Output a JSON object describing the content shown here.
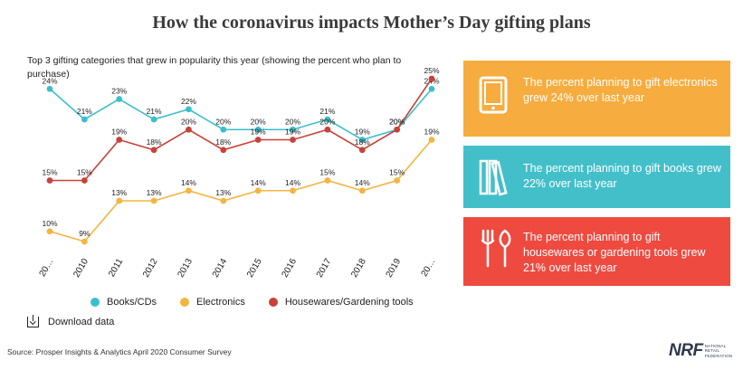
{
  "title": "How the coronavirus impacts Mother’s Day gifting plans",
  "subtitle": "Top 3 gifting categories that grew in popularity this year (showing the percent who plan to purchase)",
  "colors": {
    "books": "#3bbfcc",
    "electronics": "#f3b540",
    "housewares": "#c8413a",
    "card_orange": "#f6ac3e",
    "card_teal": "#43bfca",
    "card_red": "#ee4a40"
  },
  "chart_data": {
    "type": "line",
    "x": [
      "20…",
      "2010",
      "2011",
      "2012",
      "2013",
      "2014",
      "2015",
      "2016",
      "2017",
      "2018",
      "2019",
      "20…"
    ],
    "series": [
      {
        "name": "Books/CDs",
        "color": "#3bbfcc",
        "values": [
          24,
          21,
          23,
          21,
          22,
          20,
          20,
          20,
          21,
          19,
          20,
          24
        ],
        "labels": [
          "24%",
          "21%",
          "23%",
          "21%",
          "22%",
          "20%",
          "20%",
          "20%",
          "21%",
          "19%",
          "20%",
          "24%"
        ]
      },
      {
        "name": "Electronics",
        "color": "#f3b540",
        "values": [
          10,
          9,
          13,
          13,
          14,
          13,
          14,
          14,
          15,
          14,
          15,
          19
        ],
        "labels": [
          "10%",
          "9%",
          "13%",
          "13%",
          "14%",
          "13%",
          "14%",
          "14%",
          "15%",
          "14%",
          "15%",
          "19%"
        ]
      },
      {
        "name": "Housewares/Gardening tools",
        "color": "#c8413a",
        "values": [
          15,
          15,
          19,
          18,
          20,
          18,
          19,
          19,
          20,
          18,
          20,
          25
        ],
        "labels": [
          "15%",
          "15%",
          "19%",
          "18%",
          "20%",
          "18%",
          "19%",
          "19%",
          "20%",
          "18%",
          "20%",
          "25%"
        ]
      }
    ],
    "ylim": [
      9,
      25
    ],
    "grid": false,
    "legend_position": "bottom"
  },
  "cards": [
    {
      "text": "The percent planning to gift electronics grew 24% over last year",
      "icon": "tablet-icon",
      "color": "#f6ac3e"
    },
    {
      "text": "The percent planning to gift books grew 22% over last year",
      "icon": "books-icon",
      "color": "#43bfca"
    },
    {
      "text": "The percent planning to gift housewares or gardening tools grew 21% over last year",
      "icon": "garden-tools-icon",
      "color": "#ee4a40"
    }
  ],
  "legend": [
    "Books/CDs",
    "Electronics",
    "Housewares/Gardening tools"
  ],
  "download_label": "Download data",
  "source": "Source: Prosper Insights & Analytics April 2020 Consumer Survey",
  "logo": {
    "mark": "NRF",
    "sub": "NATIONAL RETAIL FEDERATION"
  }
}
